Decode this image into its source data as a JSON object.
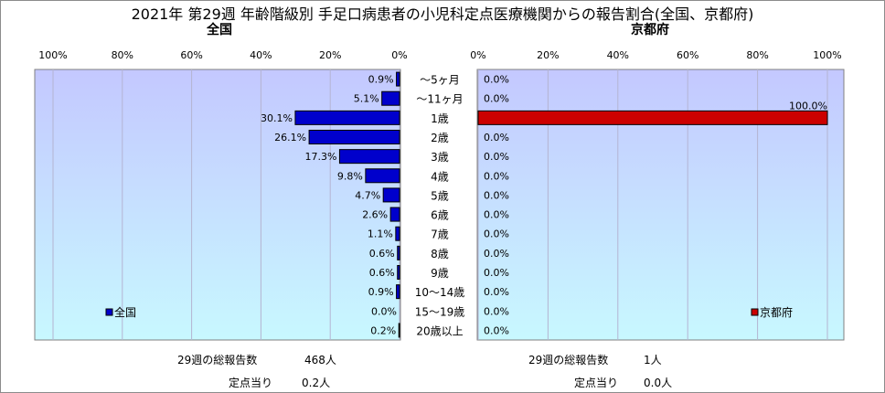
{
  "title": "2021年 第29週 年齢階級別 手足口病患者の小児科定点医療機関からの報告割合(全国、京都府)",
  "panels": {
    "national": {
      "label": "全国"
    },
    "kyoto": {
      "label": "京都府"
    }
  },
  "colors": {
    "national_bar": "#0000cc",
    "kyoto_bar": "#cc0000",
    "plot_bg_top": "#c4c8ff",
    "plot_bg_bottom": "#c8f8ff"
  },
  "chart_data": [
    {
      "type": "bar",
      "orientation": "horizontal",
      "direction": "right-to-left",
      "categories": [
        "～5ヶ月",
        "～11ヶ月",
        "1歳",
        "2歳",
        "3歳",
        "4歳",
        "5歳",
        "6歳",
        "7歳",
        "8歳",
        "9歳",
        "10～14歳",
        "15～19歳",
        "20歳以上"
      ],
      "series": [
        {
          "name": "全国",
          "values": [
            0.9,
            5.1,
            30.1,
            26.1,
            17.3,
            9.8,
            4.7,
            2.6,
            1.1,
            0.6,
            0.6,
            0.9,
            0.0,
            0.2
          ]
        }
      ],
      "value_labels": [
        "0.9%",
        "5.1%",
        "30.1%",
        "26.1%",
        "17.3%",
        "9.8%",
        "4.7%",
        "2.6%",
        "1.1%",
        "0.6%",
        "0.6%",
        "0.9%",
        "0.0%",
        "0.2%"
      ],
      "xlim": [
        0,
        100
      ],
      "xticks": [
        "100%",
        "80%",
        "60%",
        "40%",
        "20%",
        "0%"
      ],
      "grid": true,
      "legend_position": "bottom-left"
    },
    {
      "type": "bar",
      "orientation": "horizontal",
      "direction": "left-to-right",
      "categories": [
        "～5ヶ月",
        "～11ヶ月",
        "1歳",
        "2歳",
        "3歳",
        "4歳",
        "5歳",
        "6歳",
        "7歳",
        "8歳",
        "9歳",
        "10～14歳",
        "15～19歳",
        "20歳以上"
      ],
      "series": [
        {
          "name": "京都府",
          "values": [
            0.0,
            0.0,
            100.0,
            0.0,
            0.0,
            0.0,
            0.0,
            0.0,
            0.0,
            0.0,
            0.0,
            0.0,
            0.0,
            0.0
          ]
        }
      ],
      "value_labels": [
        "0.0%",
        "0.0%",
        "100.0%",
        "0.0%",
        "0.0%",
        "0.0%",
        "0.0%",
        "0.0%",
        "0.0%",
        "0.0%",
        "0.0%",
        "0.0%",
        "0.0%",
        "0.0%"
      ],
      "xlim": [
        0,
        100
      ],
      "xticks": [
        "0%",
        "20%",
        "40%",
        "60%",
        "80%",
        "100%"
      ],
      "grid": true,
      "legend_position": "bottom-right"
    }
  ],
  "footer": {
    "national_total_label": "29週の総報告数",
    "national_total_value": "468人",
    "national_per_label": "定点当り",
    "national_per_value": "0.2人",
    "kyoto_total_label": "29週の総報告数",
    "kyoto_total_value": "1人",
    "kyoto_per_label": "定点当り",
    "kyoto_per_value": "0.0人"
  }
}
